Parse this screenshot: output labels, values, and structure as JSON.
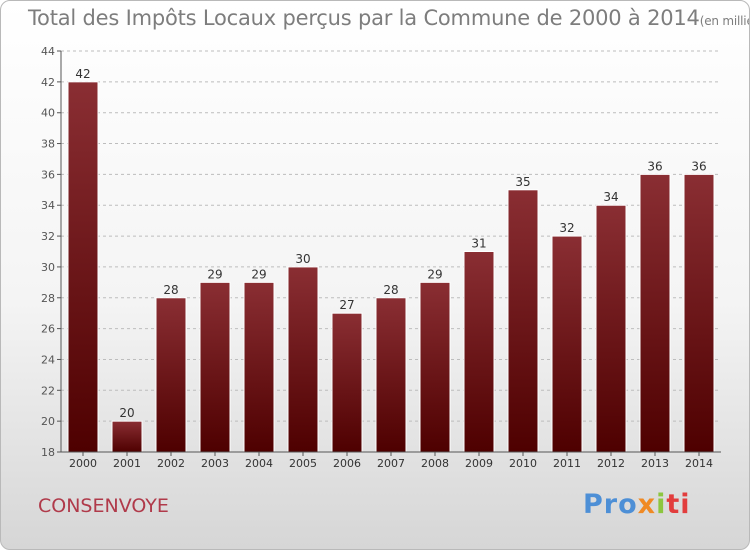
{
  "header": {
    "title": "Total des Impôts Locaux perçus par la Commune de 2000 à 2014",
    "unit": "(en milliers d'€)"
  },
  "footer": {
    "commune": "CONSENVOYE",
    "logo_parts": [
      "Pro",
      "x",
      "i",
      "ti"
    ]
  },
  "colors": {
    "bar_top": "#8a2e33",
    "bar_bottom": "#4e0000",
    "axis": "#555555",
    "grid": "#bdbdbd"
  },
  "chart_data": {
    "type": "bar",
    "title": "Total des Impôts Locaux perçus par la Commune de 2000 à 2014",
    "xlabel": "",
    "ylabel": "",
    "categories": [
      "2000",
      "2001",
      "2002",
      "2003",
      "2004",
      "2005",
      "2006",
      "2007",
      "2008",
      "2009",
      "2010",
      "2011",
      "2012",
      "2013",
      "2014"
    ],
    "values": [
      42,
      20,
      28,
      29,
      29,
      30,
      27,
      28,
      29,
      31,
      35,
      32,
      34,
      36,
      36
    ],
    "ylim": [
      18,
      44
    ],
    "yticks": [
      18,
      20,
      22,
      24,
      26,
      28,
      30,
      32,
      34,
      36,
      38,
      40,
      42,
      44
    ],
    "grid": true,
    "data_labels": true
  }
}
